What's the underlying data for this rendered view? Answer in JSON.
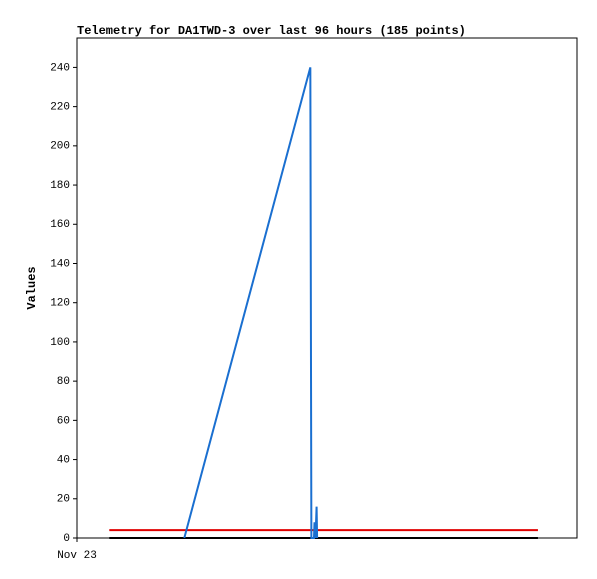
{
  "chart_data": {
    "type": "line",
    "title": "Telemetry for DA1TWD-3 over last 96 hours (185 points)",
    "y_label": "Values",
    "xlim": [
      0,
      96
    ],
    "xticks": [
      {
        "value": 0,
        "label": "Nov 23"
      }
    ],
    "ylim": [
      0,
      255
    ],
    "yticks": [
      0,
      20,
      40,
      60,
      80,
      100,
      120,
      140,
      160,
      180,
      200,
      220,
      240
    ],
    "series": [
      {
        "color": "#000000",
        "x": [
          6.2,
          88.5
        ],
        "values": [
          0,
          0
        ]
      },
      {
        "color": "#e00000",
        "x": [
          6.2,
          88.5
        ],
        "values": [
          4,
          4
        ]
      },
      {
        "color": "#1a6fd0",
        "x": [
          20.6,
          44.8,
          45.0,
          45.5,
          45.6,
          45.8,
          46.0,
          46.1
        ],
        "values": [
          0,
          240,
          0,
          0,
          8,
          0,
          16,
          0
        ]
      }
    ]
  }
}
